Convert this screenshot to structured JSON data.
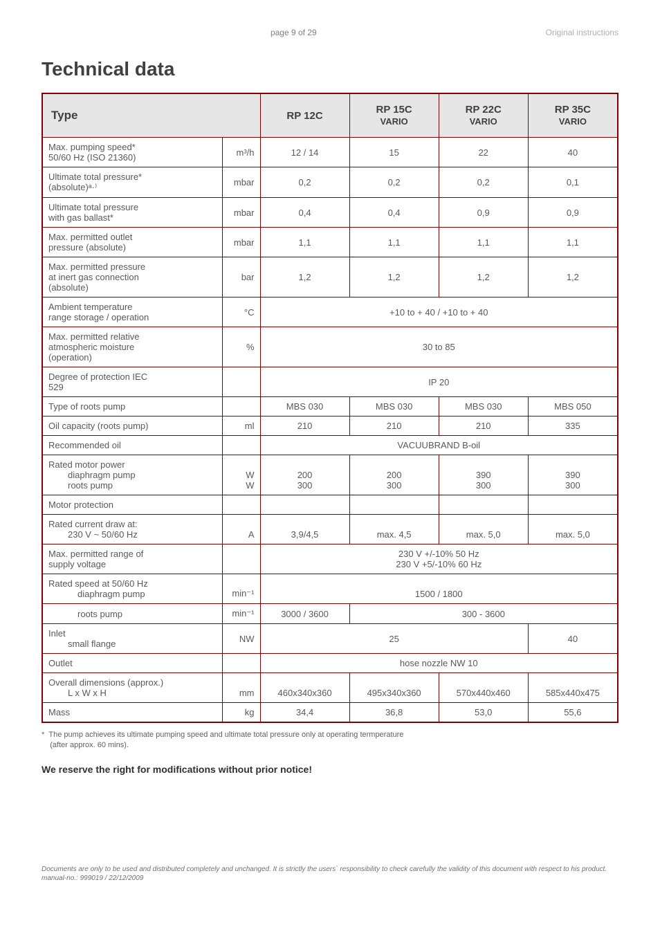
{
  "header": {
    "center": "page 9 of 29",
    "right": "Original instructions"
  },
  "title": "Technical data",
  "columns": {
    "type": "Type",
    "c1": "RP 12C",
    "c2_top": "RP 15C",
    "c2_bot": "VARIO",
    "c3_top": "RP 22C",
    "c3_bot": "VARIO",
    "c4_top": "RP 35C",
    "c4_bot": "VARIO"
  },
  "rows": {
    "r1": {
      "p": "Max. pumping speed*\n50/60 Hz (ISO 21360)",
      "u": "m³/h",
      "v": [
        "12 / 14",
        "15",
        "22",
        "40"
      ]
    },
    "r2": {
      "p": "Ultimate total pressure*\n(absolute)ᵃ·⁾",
      "u": "mbar",
      "v": [
        "0,2",
        "0,2",
        "0,2",
        "0,1"
      ]
    },
    "r3": {
      "p": "Ultimate total pressure\nwith gas ballast*",
      "u": "mbar",
      "v": [
        "0,4",
        "0,4",
        "0,9",
        "0,9"
      ]
    },
    "r4": {
      "p": "Max. permitted outlet\npressure (absolute)",
      "u": "mbar",
      "v": [
        "1,1",
        "1,1",
        "1,1",
        "1,1"
      ]
    },
    "r5": {
      "p": "Max. permitted pressure\nat inert gas connection\n(absolute)",
      "u": "bar",
      "v": [
        "1,2",
        "1,2",
        "1,2",
        "1,2"
      ]
    },
    "r6": {
      "p": "Ambient temperature\nrange  storage / operation",
      "u": "°C",
      "span": "+10 to + 40 / +10 to + 40"
    },
    "r7": {
      "p": "Max. permitted relative\natmospheric moisture\n(operation)",
      "u": "%",
      "span": "30 to 85"
    },
    "r8": {
      "p": "Degree of protection IEC\n529",
      "u": "",
      "span": "IP 20"
    },
    "r9": {
      "p": "Type of roots pump",
      "u": "",
      "v": [
        "MBS 030",
        "MBS 030",
        "MBS 030",
        "MBS 050"
      ]
    },
    "r10": {
      "p": "Oil capacity (roots pump)",
      "u": "ml",
      "v": [
        "210",
        "210",
        "210",
        "335"
      ]
    },
    "r11": {
      "p": "Recommended oil",
      "u": "",
      "span": "VACUUBRAND B-oil"
    },
    "r12": {
      "p1": "Rated motor power",
      "p2": "diaphragm pump",
      "p3": "roots pump",
      "u1": "W",
      "u2": "W",
      "v1": [
        "200",
        "200",
        "390",
        "390"
      ],
      "v2": [
        "300",
        "300",
        "300",
        "300"
      ]
    },
    "r13": {
      "p": "Motor protection",
      "u": "",
      "v": [
        "",
        "",
        "",
        ""
      ]
    },
    "r14": {
      "p1": "Rated current draw at:",
      "p2": "230 V ~ 50/60 Hz",
      "u": "A",
      "v": [
        "3,9/4,5",
        "max. 4,5",
        "max. 5,0",
        "max. 5,0"
      ]
    },
    "r15": {
      "p": "Max. permitted range of\nsupply voltage",
      "u": "",
      "span_l1": "230 V +/-10% 50 Hz",
      "span_l2": "230 V +5/-10% 60 Hz"
    },
    "r16": {
      "p1": "Rated speed at 50/60 Hz",
      "p2": "diaphragm pump",
      "u": "min⁻¹",
      "span": "1500 / 1800"
    },
    "r17": {
      "p": "roots pump",
      "u": "min⁻¹",
      "v1": "3000 / 3600",
      "span": "300 - 3600"
    },
    "r18": {
      "p1": "Inlet",
      "p2": "small flange",
      "u": "NW",
      "span3": "25",
      "v4": "40"
    },
    "r19": {
      "p": "Outlet",
      "u": "",
      "span": "hose nozzle NW 10"
    },
    "r20": {
      "p1": "Overall dimensions (approx.)",
      "p2": "L x W x H",
      "u": "mm",
      "v": [
        "460x340x360",
        "495x340x360",
        "570x440x460",
        "585x440x475"
      ]
    },
    "r21": {
      "p": "Mass",
      "u": "kg",
      "v": [
        "34,4",
        "36,8",
        "53,0",
        "55,6"
      ]
    }
  },
  "footnote_star": "*",
  "footnote_text1": "The pump achieves its ultimate pumping speed and ultimate total pressure only at operating termperature",
  "footnote_text2": "(after approx. 60 mins).",
  "reserve": "We reserve the right for modifications without prior notice!",
  "footer": "Documents are only to be used and distributed completely and unchanged. It is strictly the users´ responsibility to check carefully the validity of this document with respect to his product. manual-no.: 999019 / 22/12/2009"
}
